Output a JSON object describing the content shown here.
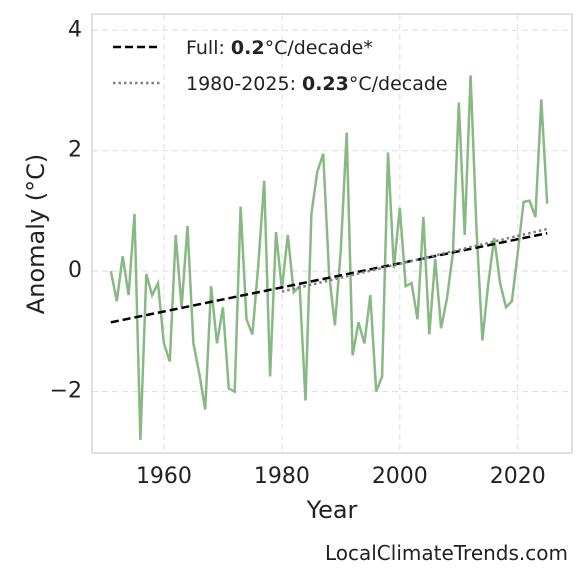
{
  "chart_data": {
    "type": "line",
    "xlabel": "Year",
    "ylabel": "Anomaly (°C)",
    "footer": "LocalClimateTrends.com",
    "x": [
      1951,
      1952,
      1953,
      1954,
      1955,
      1956,
      1957,
      1958,
      1959,
      1960,
      1961,
      1962,
      1963,
      1964,
      1965,
      1966,
      1967,
      1968,
      1969,
      1970,
      1971,
      1972,
      1973,
      1974,
      1975,
      1976,
      1977,
      1978,
      1979,
      1980,
      1981,
      1982,
      1983,
      1984,
      1985,
      1986,
      1987,
      1988,
      1989,
      1990,
      1991,
      1992,
      1993,
      1994,
      1995,
      1996,
      1997,
      1998,
      1999,
      2000,
      2001,
      2002,
      2003,
      2004,
      2005,
      2006,
      2007,
      2008,
      2009,
      2010,
      2011,
      2012,
      2013,
      2014,
      2015,
      2016,
      2017,
      2018,
      2019,
      2020,
      2021,
      2022,
      2023,
      2024,
      2025
    ],
    "series": [
      {
        "color": "#88b984",
        "values": [
          0.0,
          -0.5,
          0.25,
          -0.4,
          0.95,
          -2.8,
          -0.05,
          -0.4,
          -0.2,
          -1.2,
          -1.5,
          0.6,
          -0.6,
          0.75,
          -1.2,
          -1.7,
          -2.3,
          -0.25,
          -1.2,
          -0.6,
          -1.95,
          -2.0,
          1.07,
          -0.8,
          -1.05,
          0.1,
          1.5,
          -1.75,
          0.65,
          -0.3,
          0.6,
          -0.35,
          -0.25,
          -2.15,
          0.95,
          1.65,
          1.95,
          -0.05,
          -0.9,
          0.35,
          2.3,
          -1.4,
          -0.85,
          -1.2,
          -0.4,
          -2.0,
          -1.75,
          1.97,
          0.05,
          1.05,
          -0.25,
          -0.2,
          -0.8,
          0.9,
          -1.05,
          0.2,
          -0.95,
          -0.45,
          0.3,
          2.8,
          0.6,
          3.25,
          0.7,
          -1.15,
          -0.2,
          0.55,
          -0.2,
          -0.6,
          -0.5,
          0.3,
          1.15,
          1.17,
          0.9,
          2.85,
          1.12
        ]
      }
    ],
    "trends": [
      {
        "label": "Full:",
        "slope": 0.2,
        "unit": "°C/decade*",
        "color": "#000000",
        "style": "dashed",
        "x": [
          1951,
          2025
        ],
        "values": [
          -0.85,
          0.63
        ]
      },
      {
        "label": "1980-2025:",
        "slope": 0.23,
        "unit": "°C/decade",
        "color": "#808080",
        "style": "dotted",
        "x": [
          1980,
          2025
        ],
        "values": [
          -0.34,
          0.7
        ]
      }
    ],
    "xlim": [
      1947.8,
      2029.2
    ],
    "ylim": [
      -3.02,
      4.27
    ],
    "xticks": [
      1960,
      1980,
      2000,
      2020
    ],
    "yticks": [
      {
        "value": -2,
        "label": "−2"
      },
      0,
      2,
      4
    ],
    "grid": true,
    "legend": "upper left"
  }
}
